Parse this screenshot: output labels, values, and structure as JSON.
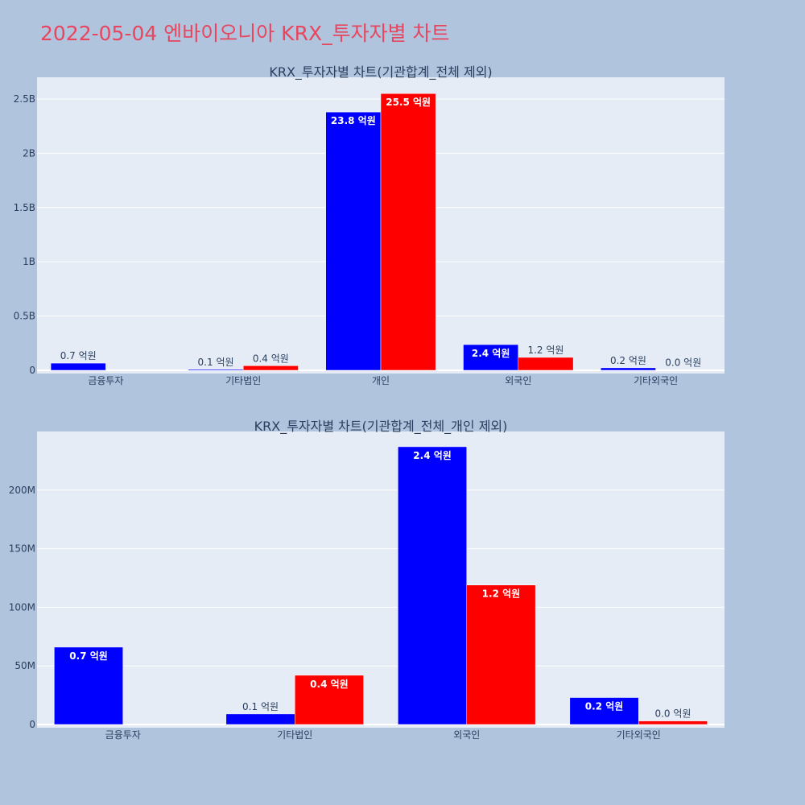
{
  "page_title": "2022-05-04 엔바이오니아 KRX_투자자별 차트",
  "colors": {
    "background": "#b0c4de",
    "plot_bg": "#e5ecf6",
    "series_a": "#0000ff",
    "series_b": "#ff0000",
    "title": "#e8455e"
  },
  "chart_data": [
    {
      "type": "bar",
      "title": "KRX_투자자별 차트(기관합계_전체 제외)",
      "categories": [
        "금융투자",
        "기타법인",
        "개인",
        "외국인",
        "기타외국인"
      ],
      "ylim": [
        0,
        2700000000
      ],
      "yticks": [
        {
          "v": 0,
          "label": "0"
        },
        {
          "v": 500000000,
          "label": "0.5B"
        },
        {
          "v": 1000000000,
          "label": "1B"
        },
        {
          "v": 1500000000,
          "label": "1.5B"
        },
        {
          "v": 2000000000,
          "label": "2B"
        },
        {
          "v": 2500000000,
          "label": "2.5B"
        }
      ],
      "grid": true,
      "series": [
        {
          "color": "#0000ff",
          "values": [
            66000000,
            9000000,
            2380000000,
            237000000,
            23000000
          ],
          "labels": [
            "0.7 억원",
            "0.1 억원",
            "23.8 억원",
            "2.4 억원",
            "0.2 억원"
          ]
        },
        {
          "color": "#ff0000",
          "values": [
            0,
            42000000,
            2550000000,
            119000000,
            3000000
          ],
          "labels": [
            "",
            "0.4 억원",
            "25.5 억원",
            "1.2 억원",
            "0.0 억원"
          ]
        }
      ]
    },
    {
      "type": "bar",
      "title": "KRX_투자자별 차트(기관합계_전체_개인 제외)",
      "categories": [
        "금융투자",
        "기타법인",
        "외국인",
        "기타외국인"
      ],
      "ylim": [
        0,
        250000000
      ],
      "yticks": [
        {
          "v": 0,
          "label": "0"
        },
        {
          "v": 50000000,
          "label": "50M"
        },
        {
          "v": 100000000,
          "label": "100M"
        },
        {
          "v": 150000000,
          "label": "150M"
        },
        {
          "v": 200000000,
          "label": "200M"
        }
      ],
      "grid": true,
      "series": [
        {
          "color": "#0000ff",
          "values": [
            66000000,
            9000000,
            237000000,
            23000000
          ],
          "labels": [
            "0.7 억원",
            "0.1 억원",
            "2.4 억원",
            "0.2 억원"
          ]
        },
        {
          "color": "#ff0000",
          "values": [
            0,
            42000000,
            119000000,
            3000000
          ],
          "labels": [
            "",
            "0.4 억원",
            "1.2 억원",
            "0.0 억원"
          ]
        }
      ]
    }
  ]
}
